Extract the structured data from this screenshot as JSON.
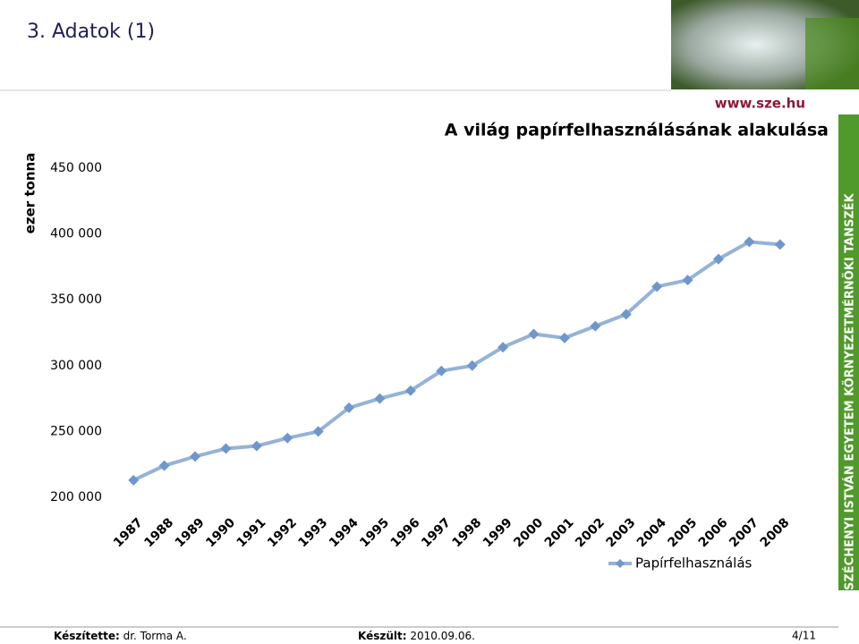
{
  "header": {
    "title": "3. Adatok (1)",
    "url": "www.sze.hu"
  },
  "sidebar": {
    "text": "SZÉCHENYI ISTVÁN EGYETEM KÖRNYEZETMÉRNÖKI TANSZÉK"
  },
  "footer": {
    "author_label": "Készítette:",
    "author": "dr. Torma A.",
    "date_label": "Készült:",
    "date": "2010.09.06.",
    "page": "4/11"
  },
  "chart_data": {
    "type": "line",
    "title": "A világ papírfelhasználásának alakulása",
    "y_label": "ezer tonna",
    "categories": [
      "1987",
      "1988",
      "1989",
      "1990",
      "1991",
      "1992",
      "1993",
      "1994",
      "1995",
      "1996",
      "1997",
      "1998",
      "1999",
      "2000",
      "2001",
      "2002",
      "2003",
      "2004",
      "2005",
      "2006",
      "2007",
      "2008"
    ],
    "series": [
      {
        "name": "Papírfelhasználás",
        "color": "#95b3d7",
        "marker_color": "#6f97cc",
        "values": [
          213000,
          224000,
          231000,
          237000,
          239000,
          245000,
          250000,
          268000,
          275000,
          281000,
          296000,
          300000,
          314000,
          324000,
          321000,
          330000,
          339000,
          360000,
          365000,
          381000,
          394000,
          392000
        ]
      }
    ],
    "ylim": [
      200000,
      450000
    ],
    "yticks": [
      {
        "value": 200000,
        "label": "200 000"
      },
      {
        "value": 250000,
        "label": "250 000"
      },
      {
        "value": 300000,
        "label": "300 000"
      },
      {
        "value": 350000,
        "label": "350 000"
      },
      {
        "value": 400000,
        "label": "400 000"
      },
      {
        "value": 450000,
        "label": "450 000"
      }
    ],
    "grid": false,
    "legend": "bottom-right"
  }
}
